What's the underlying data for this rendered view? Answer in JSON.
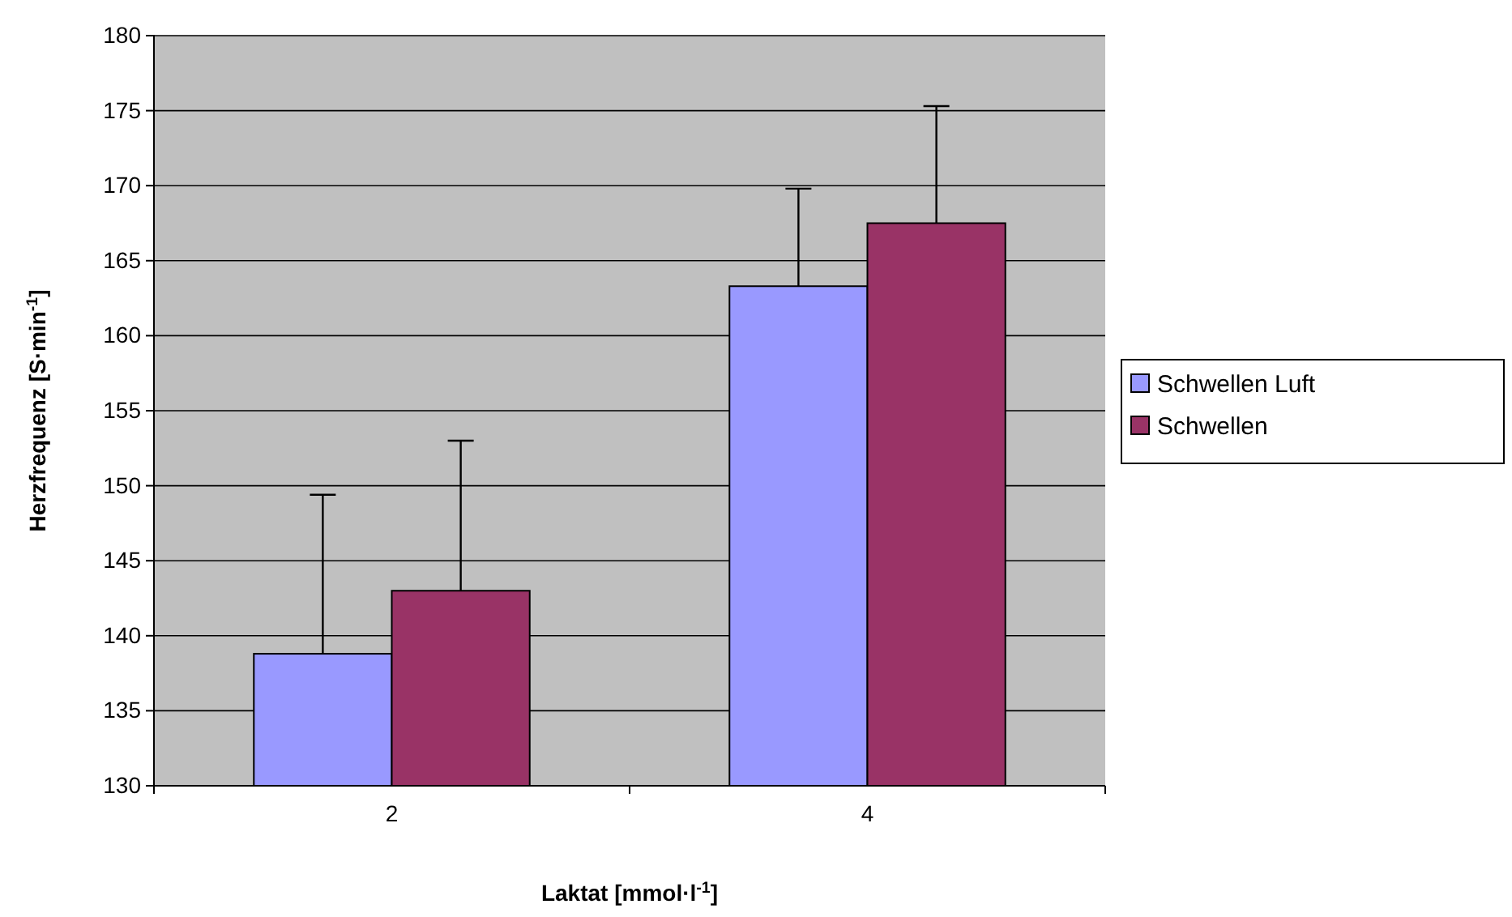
{
  "chart_data": {
    "type": "bar",
    "xlabel": "Laktat [mmol·l$^{-1}$]",
    "ylabel": "Herzfrequenz [S·min$^{-1}$]",
    "categories": [
      "2",
      "4"
    ],
    "series": [
      {
        "name": "Schwellen Luft",
        "color": "#9999ff",
        "values": [
          138.8,
          163.3
        ],
        "errors": [
          [
            138.8,
            149.4
          ],
          [
            163.3,
            169.8
          ]
        ]
      },
      {
        "name": "Schwellen",
        "color": "#993366",
        "values": [
          143.0,
          167.5
        ],
        "errors": [
          [
            143.0,
            153.0
          ],
          [
            167.5,
            175.3
          ]
        ]
      }
    ],
    "ylim": [
      130,
      180
    ],
    "yticks": [
      130,
      135,
      140,
      145,
      150,
      155,
      160,
      165,
      170,
      175,
      180
    ],
    "grid": "y",
    "legend": "right"
  }
}
